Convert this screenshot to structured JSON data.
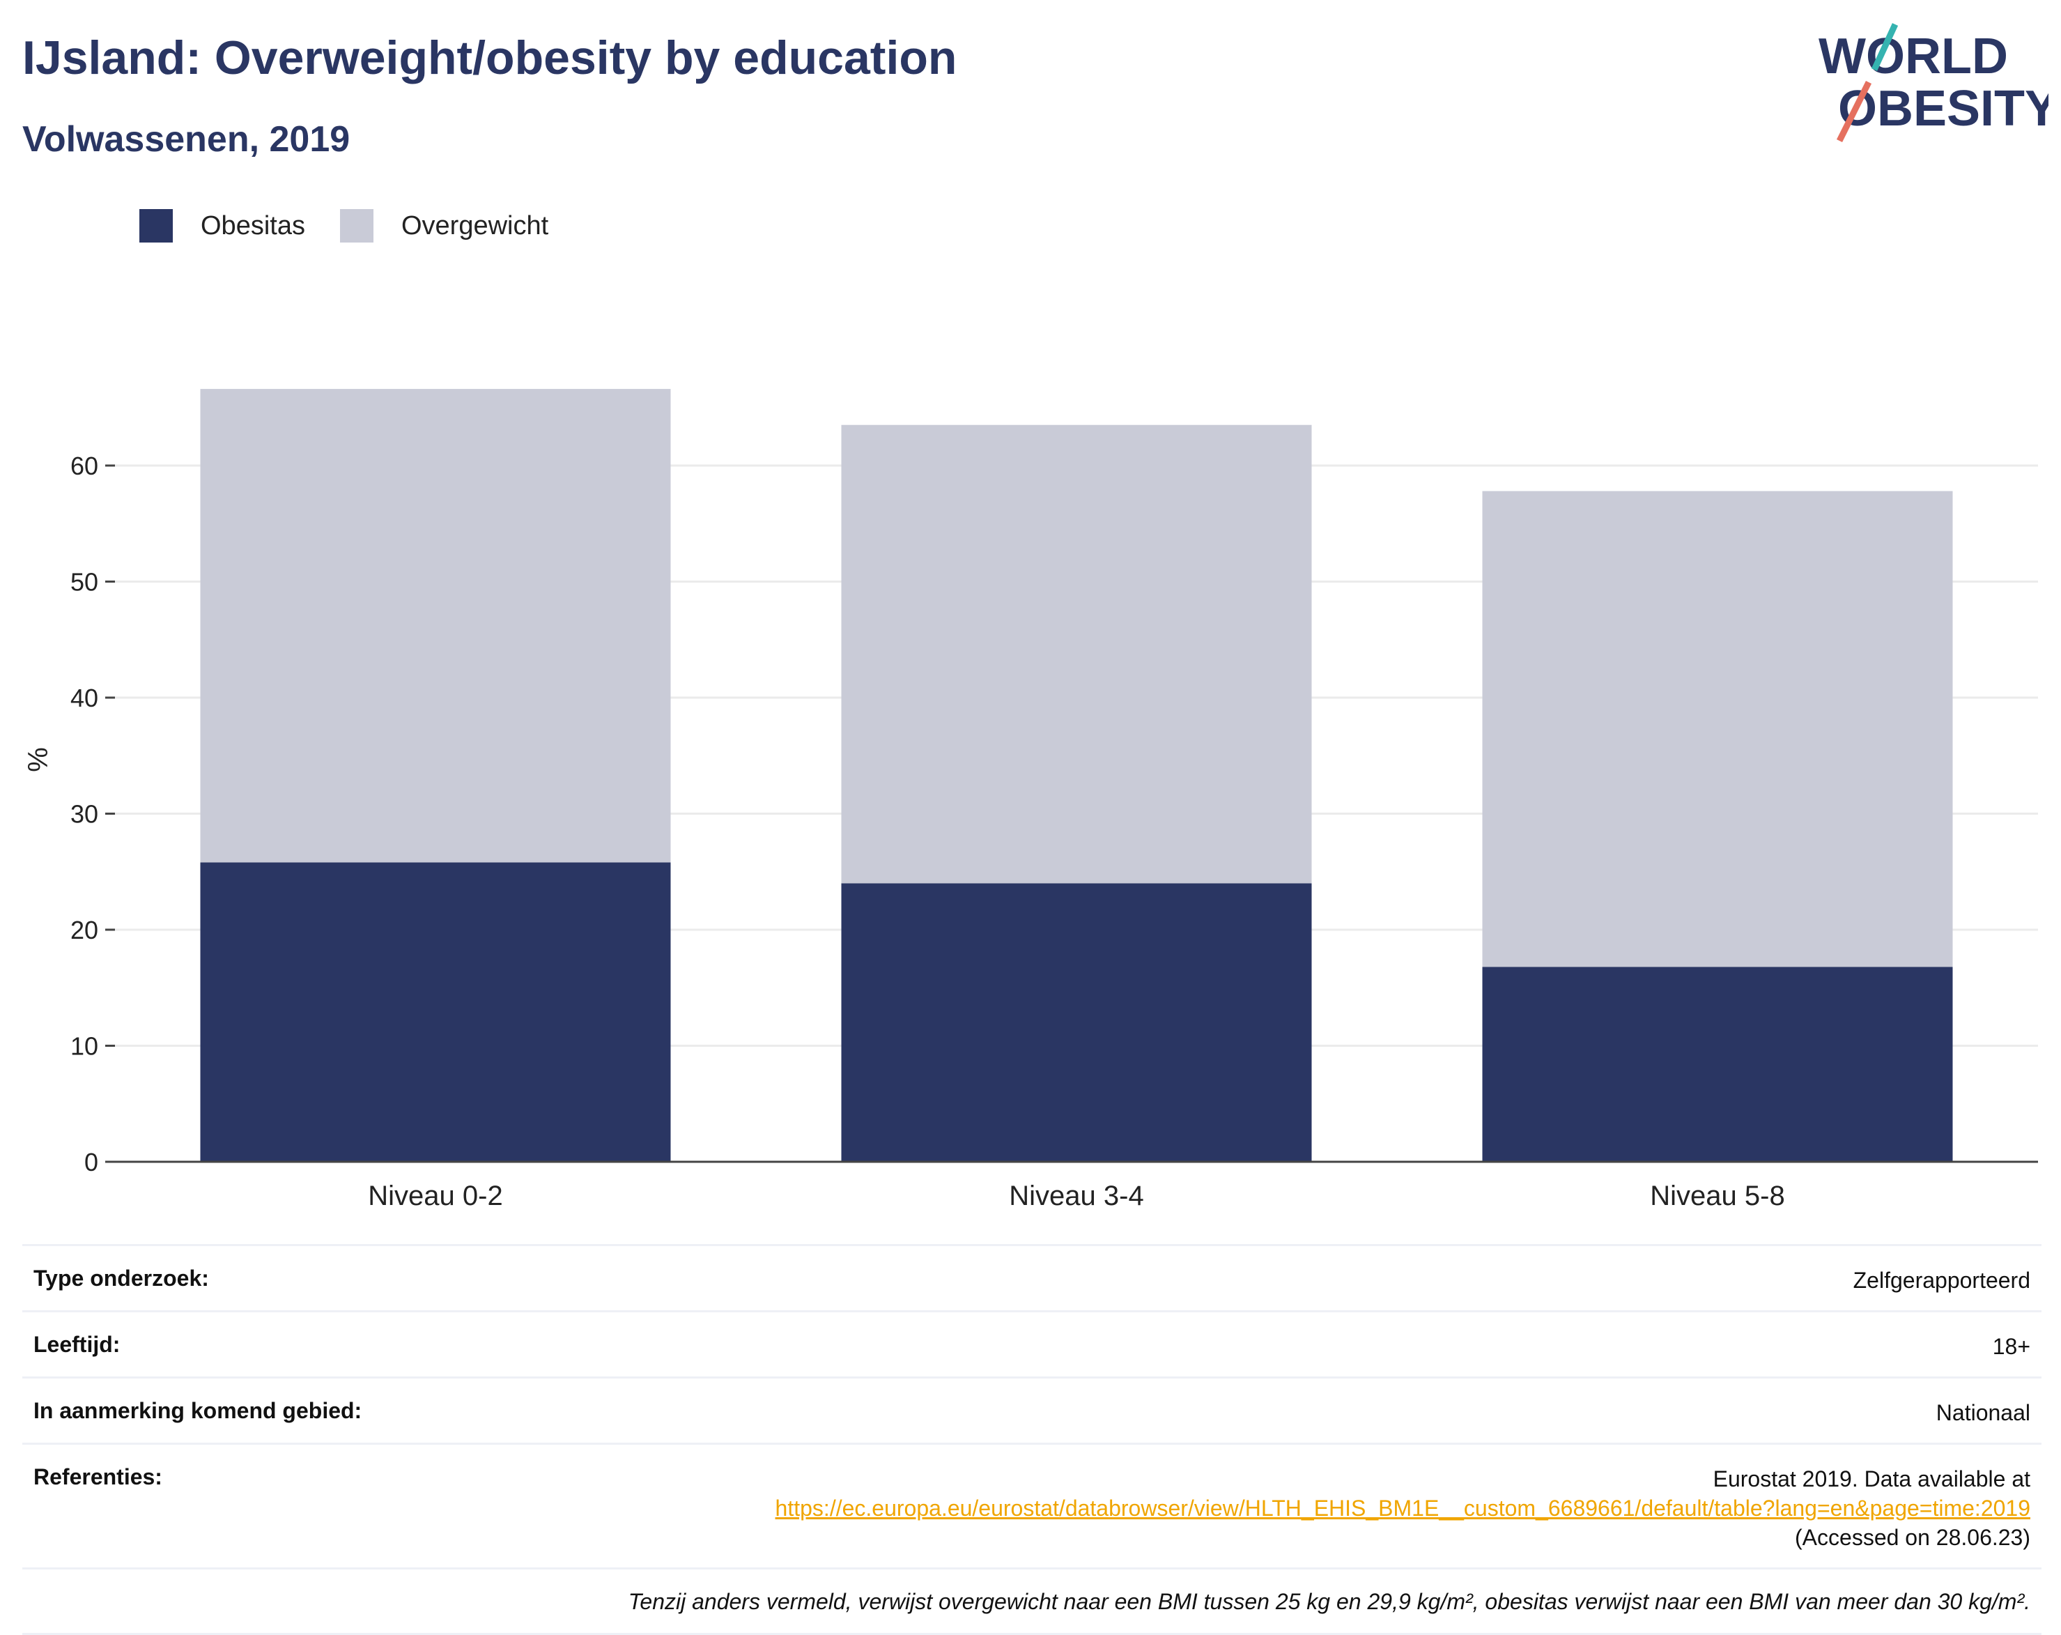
{
  "header": {
    "title": "IJsland: Overweight/obesity by education",
    "subtitle": "Volwassenen, 2019"
  },
  "logo": {
    "line1": "WORLD",
    "line2": "OBESITY"
  },
  "colors": {
    "obesity": "#2a3663",
    "overweight": "#c9cbd7",
    "accent_teal": "#35b3b0",
    "accent_red": "#e5705f",
    "link": "#f0a500"
  },
  "chart_data": {
    "type": "bar",
    "stacked": true,
    "categories": [
      "Niveau 0-2",
      "Niveau 3-4",
      "Niveau 5-8"
    ],
    "series": [
      {
        "name": "Obesitas",
        "values": [
          25.8,
          24.0,
          16.8
        ]
      },
      {
        "name": "Overgewicht",
        "values": [
          40.8,
          39.5,
          41.0
        ]
      }
    ],
    "ylabel": "%",
    "xlabel": "",
    "ylim": [
      0,
      70
    ],
    "yticks": [
      0,
      10,
      20,
      30,
      40,
      50,
      60
    ],
    "grid": true,
    "legend": "top-left"
  },
  "info": {
    "rows": [
      {
        "key": "Type onderzoek:",
        "value": "Zelfgerapporteerd"
      },
      {
        "key": "Leeftijd:",
        "value": "18+"
      },
      {
        "key": "In aanmerking komend gebied:",
        "value": "Nationaal"
      }
    ],
    "references": {
      "key": "Referenties:",
      "line1": "Eurostat 2019. Data available at",
      "link": "https://ec.europa.eu/eurostat/databrowser/view/HLTH_EHIS_BM1E__custom_6689661/default/table?lang=en&page=time:2019",
      "line3": "(Accessed on 28.06.23)"
    },
    "note": "Tenzij anders vermeld, verwijst overgewicht naar een BMI tussen 25 kg en 29,9 kg/m², obesitas verwijst naar een BMI van meer dan 30 kg/m²."
  }
}
